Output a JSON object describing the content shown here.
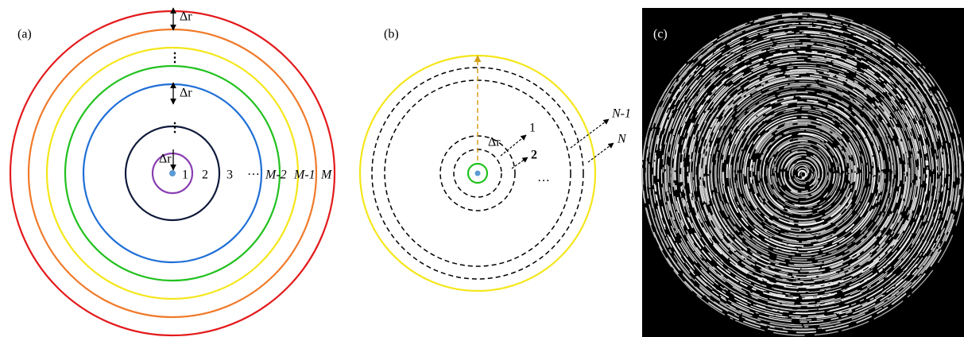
{
  "panels": [
    {
      "label": "(a)",
      "delta_r": [
        "Δr",
        "Δr",
        "Δr"
      ],
      "ring_labels": [
        "1",
        "2",
        "3",
        "···",
        "M-2",
        "M-1",
        "M"
      ]
    },
    {
      "label": "(b)",
      "delta_r": "Δr",
      "ring_labels": [
        "1",
        "2",
        "···",
        "N-1",
        "N"
      ]
    },
    {
      "label": "(c)"
    }
  ]
}
